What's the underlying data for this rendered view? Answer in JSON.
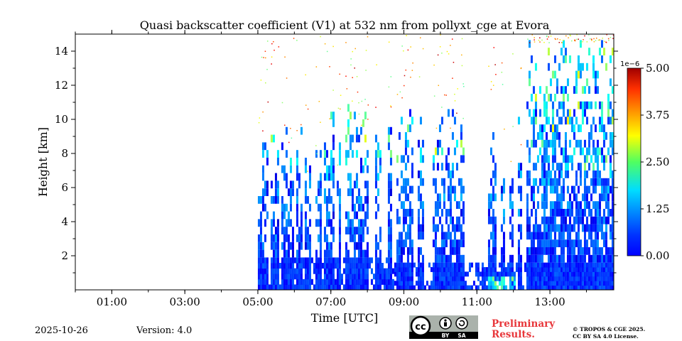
{
  "chart_data": {
    "type": "heatmap",
    "title": "Quasi backscatter coefficient (V1) at 532 nm from pollyxt_cge at Evora",
    "xlabel": "Time [UTC]",
    "ylabel": "Height [km]",
    "xlim": [
      0,
      14.75
    ],
    "ylim": [
      0,
      15
    ],
    "x_ticks": [
      1,
      3,
      5,
      7,
      9,
      11,
      13
    ],
    "x_tick_labels": [
      "01:00",
      "03:00",
      "05:00",
      "07:00",
      "09:00",
      "11:00",
      "13:00"
    ],
    "y_ticks": [
      2,
      4,
      6,
      8,
      10,
      12,
      14
    ],
    "y_tick_labels": [
      "2",
      "4",
      "6",
      "8",
      "10",
      "12",
      "14"
    ],
    "colorbar": {
      "min": 0,
      "max": 5.0,
      "ticks": [
        0,
        1.25,
        2.5,
        3.75,
        5.0
      ],
      "tick_labels": [
        "0.00",
        "1.25",
        "2.50",
        "3.75",
        "5.00"
      ],
      "exponent_label": "1e−6",
      "colormap": "jet"
    },
    "data_start_time": 5.0,
    "data_end_time": 14.75,
    "gaps": [
      [
        5.25,
        5.3
      ],
      [
        5.55,
        5.62
      ],
      [
        5.95,
        6.05
      ],
      [
        6.2,
        6.28
      ],
      [
        6.45,
        6.55
      ],
      [
        6.7,
        6.8
      ],
      [
        7.05,
        7.15
      ],
      [
        7.25,
        7.35
      ],
      [
        8.0,
        8.2
      ],
      [
        8.35,
        8.55
      ],
      [
        8.65,
        8.75
      ],
      [
        9.25,
        9.35
      ],
      [
        9.55,
        9.75
      ],
      [
        10.65,
        11.3
      ],
      [
        11.5,
        11.6
      ],
      [
        11.75,
        11.85
      ],
      [
        12.0,
        12.1
      ],
      [
        12.2,
        12.35
      ]
    ]
  },
  "footer": {
    "date": "2025-10-26",
    "version": "Version: 4.0",
    "preliminary": [
      "Preliminary",
      "Results."
    ],
    "copyright": [
      "© TROPOS & CGE 2025.",
      "CC BY SA 4.0 License."
    ],
    "license_badge": {
      "cc": "cc",
      "by": "BY",
      "sa": "SA"
    }
  },
  "colors": {
    "preliminary": "#e8363a"
  }
}
